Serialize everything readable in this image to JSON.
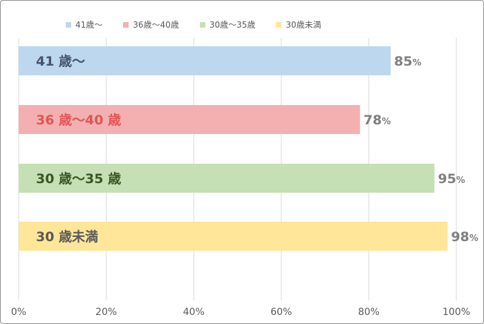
{
  "chart_data": {
    "type": "bar",
    "orientation": "horizontal",
    "categories": [
      "41歳〜",
      "36歳〜40歳",
      "30歳〜35歳",
      "30歳未満"
    ],
    "bar_labels": [
      "41 歳〜",
      "36 歳〜40 歳",
      "30 歳〜35 歳",
      "30 歳未満"
    ],
    "values": [
      85,
      78,
      95,
      98
    ],
    "value_suffix": "%",
    "colors": [
      "#bdd7ee",
      "#f4b0b0",
      "#c5e0b4",
      "#ffe699"
    ],
    "label_colors": [
      "#44546a",
      "#e05555",
      "#375623",
      "#595959"
    ],
    "xlim": [
      0,
      100
    ],
    "xticks": [
      "0%",
      "20%",
      "40%",
      "60%",
      "80%",
      "100%"
    ],
    "grid": true,
    "legend": {
      "placement": "top",
      "entries": [
        "41歳〜",
        "36歳〜40歳",
        "30歳〜35歳",
        "30歳未満"
      ]
    }
  }
}
